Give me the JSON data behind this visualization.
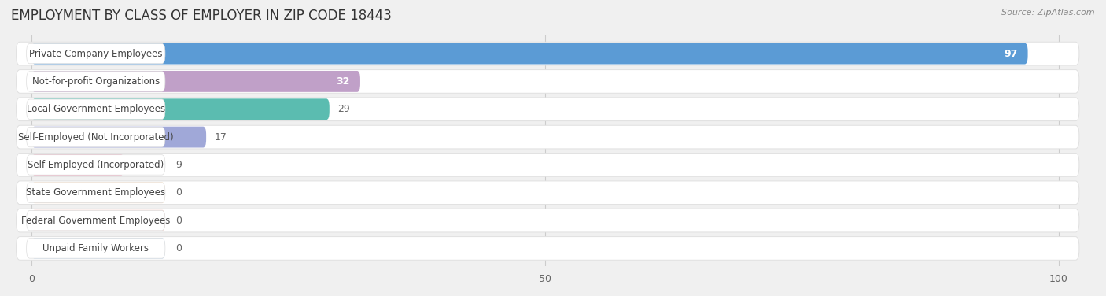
{
  "title": "EMPLOYMENT BY CLASS OF EMPLOYER IN ZIP CODE 18443",
  "source": "Source: ZipAtlas.com",
  "categories": [
    "Private Company Employees",
    "Not-for-profit Organizations",
    "Local Government Employees",
    "Self-Employed (Not Incorporated)",
    "Self-Employed (Incorporated)",
    "State Government Employees",
    "Federal Government Employees",
    "Unpaid Family Workers"
  ],
  "values": [
    97,
    32,
    29,
    17,
    9,
    0,
    0,
    0
  ],
  "bar_colors": [
    "#5b9bd5",
    "#c0a0c8",
    "#5bbcb0",
    "#a0a8d8",
    "#f0a0b8",
    "#f5c89a",
    "#f0a898",
    "#a8c8e8"
  ],
  "label_color_inside": "#ffffff",
  "label_color_outside": "#666666",
  "background_color": "#f0f0f0",
  "row_bg_even": "#ffffff",
  "row_bg_odd": "#f7f7f7",
  "xlim_max": 100,
  "xticks": [
    0,
    50,
    100
  ],
  "title_fontsize": 12,
  "source_fontsize": 8,
  "bar_label_fontsize": 9,
  "category_label_fontsize": 8.5,
  "grid_color": "#cccccc",
  "row_edge_color": "#e0e0e0",
  "value_threshold_inside": 30
}
